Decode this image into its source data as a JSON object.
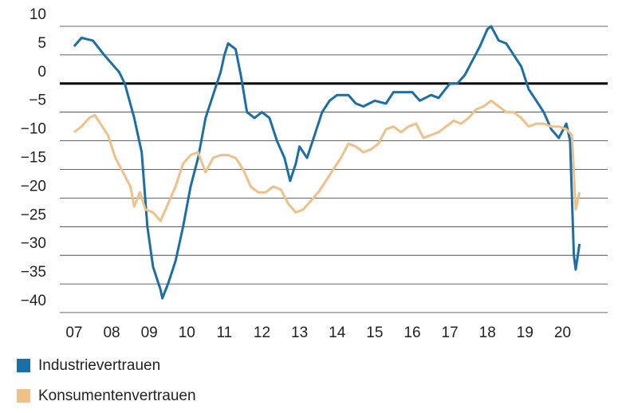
{
  "chart_data": {
    "type": "line",
    "x_ind": [
      2007.0,
      2007.2,
      2007.5,
      2007.8,
      2008.0,
      2008.2,
      2008.35,
      2008.6,
      2008.8,
      2008.95,
      2009.1,
      2009.3,
      2009.35,
      2009.5,
      2009.7,
      2009.9,
      2010.1,
      2010.3,
      2010.5,
      2010.7,
      2010.9,
      2011.0,
      2011.1,
      2011.3,
      2011.45,
      2011.6,
      2011.8,
      2012.0,
      2012.2,
      2012.4,
      2012.6,
      2012.75,
      2012.9,
      2013.0,
      2013.2,
      2013.4,
      2013.6,
      2013.8,
      2014.0,
      2014.3,
      2014.5,
      2014.7,
      2015.0,
      2015.3,
      2015.5,
      2015.8,
      2016.0,
      2016.2,
      2016.5,
      2016.7,
      2017.0,
      2017.2,
      2017.4,
      2017.6,
      2017.8,
      2018.0,
      2018.1,
      2018.3,
      2018.5,
      2018.7,
      2018.9,
      2019.1,
      2019.3,
      2019.5,
      2019.7,
      2019.9,
      2020.1,
      2020.2,
      2020.3,
      2020.35,
      2020.45
    ],
    "x_kon": [
      2007.0,
      2007.2,
      2007.4,
      2007.55,
      2007.7,
      2007.9,
      2008.1,
      2008.3,
      2008.5,
      2008.6,
      2008.75,
      2008.9,
      2009.1,
      2009.3,
      2009.5,
      2009.7,
      2009.9,
      2010.1,
      2010.3,
      2010.5,
      2010.7,
      2010.9,
      2011.1,
      2011.3,
      2011.5,
      2011.7,
      2011.9,
      2012.1,
      2012.3,
      2012.5,
      2012.7,
      2012.9,
      2013.1,
      2013.3,
      2013.5,
      2013.7,
      2013.9,
      2014.1,
      2014.3,
      2014.5,
      2014.7,
      2014.9,
      2015.1,
      2015.3,
      2015.5,
      2015.7,
      2015.9,
      2016.1,
      2016.3,
      2016.5,
      2016.7,
      2016.9,
      2017.1,
      2017.3,
      2017.5,
      2017.7,
      2017.9,
      2018.1,
      2018.3,
      2018.5,
      2018.7,
      2018.9,
      2019.1,
      2019.3,
      2019.5,
      2019.7,
      2019.9,
      2020.1,
      2020.25,
      2020.35,
      2020.45
    ],
    "series": [
      {
        "name": "Industrievertrauen",
        "color": "#1b6fa6",
        "x": "x_ind",
        "values": [
          6.5,
          8,
          7.5,
          5,
          3.5,
          2,
          0,
          -6,
          -12,
          -25,
          -32,
          -36,
          -37.5,
          -35,
          -31,
          -25,
          -18,
          -13,
          -6,
          -2,
          2,
          5,
          7,
          6,
          1,
          -5,
          -6,
          -5,
          -6,
          -10,
          -13,
          -17,
          -14,
          -11,
          -13,
          -9,
          -5,
          -3,
          -2,
          -2,
          -3.5,
          -4,
          -3,
          -3.5,
          -1.5,
          -1.5,
          -1.5,
          -3,
          -2,
          -2.5,
          0,
          0,
          1.5,
          4,
          6.5,
          9.5,
          10,
          7.5,
          7,
          5,
          3,
          -1,
          -3,
          -5,
          -8,
          -9.5,
          -7,
          -10,
          -30,
          -32.5,
          -28
        ]
      },
      {
        "name": "Konsumentenvertrauen",
        "color": "#efc088",
        "x": "x_kon",
        "values": [
          -8.5,
          -7.5,
          -6,
          -5.5,
          -7,
          -9,
          -13,
          -15.5,
          -18,
          -21.5,
          -19,
          -22,
          -22.5,
          -24,
          -21,
          -18,
          -14,
          -12.5,
          -12,
          -15.5,
          -13,
          -12.5,
          -12.5,
          -13,
          -15,
          -18,
          -19,
          -19,
          -18,
          -18.5,
          -21,
          -22.5,
          -22,
          -20.5,
          -19,
          -17,
          -15,
          -13,
          -10.5,
          -11,
          -12,
          -11.5,
          -10.5,
          -8,
          -7.5,
          -8.5,
          -7.5,
          -7,
          -9.5,
          -9,
          -8.5,
          -7.5,
          -6.5,
          -7,
          -6,
          -4.5,
          -4,
          -3,
          -4,
          -5,
          -5,
          -6,
          -7.5,
          -7,
          -7,
          -7.5,
          -7.5,
          -8,
          -9,
          -22,
          -19
        ]
      }
    ],
    "xlim": [
      2006.62,
      2021.2
    ],
    "xticks": [
      {
        "value": 2007,
        "label": "07"
      },
      {
        "value": 2008,
        "label": "08"
      },
      {
        "value": 2009,
        "label": "09"
      },
      {
        "value": 2010,
        "label": "10"
      },
      {
        "value": 2011,
        "label": "11"
      },
      {
        "value": 2012,
        "label": "12"
      },
      {
        "value": 2013,
        "label": "13"
      },
      {
        "value": 2014,
        "label": "14"
      },
      {
        "value": 2015,
        "label": "15"
      },
      {
        "value": 2016,
        "label": "16"
      },
      {
        "value": 2017,
        "label": "17"
      },
      {
        "value": 2018,
        "label": "18"
      },
      {
        "value": 2019,
        "label": "19"
      },
      {
        "value": 2020,
        "label": "20"
      }
    ],
    "ylim": [
      -40,
      10
    ],
    "yticks": [
      10,
      5,
      0,
      {
        "value": -5,
        "label": "−5"
      },
      {
        "value": -10,
        "label": "−10"
      },
      {
        "value": -15,
        "label": "−15"
      },
      {
        "value": -20,
        "label": "−20"
      },
      {
        "value": -25,
        "label": "−25"
      },
      {
        "value": -30,
        "label": "−30"
      },
      {
        "value": -35,
        "label": "−35"
      },
      {
        "value": -40,
        "label": "−40"
      }
    ],
    "grid": true,
    "zero_line": true,
    "legend": "bottom"
  }
}
